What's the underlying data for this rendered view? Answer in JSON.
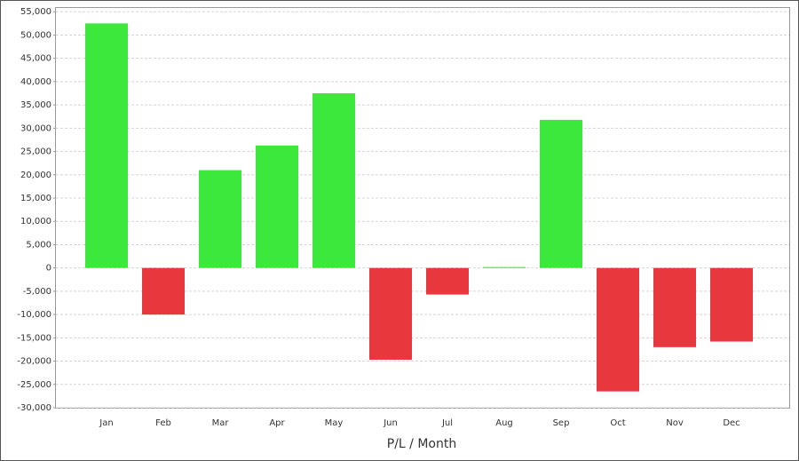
{
  "chart_data": {
    "type": "bar",
    "x_label": "P/L / Month",
    "categories": [
      "Jan",
      "Feb",
      "Mar",
      "Apr",
      "May",
      "Jun",
      "Jul",
      "Aug",
      "Sep",
      "Oct",
      "Nov",
      "Dec"
    ],
    "values": [
      52500,
      -10000,
      21000,
      26300,
      37500,
      -19700,
      -5700,
      200,
      31800,
      -26500,
      -17000,
      -15800
    ],
    "positive_color": "#3de83d",
    "negative_color": "#e8383d",
    "ylim": [
      -30000,
      56000
    ],
    "yticks": [
      {
        "value": -30000,
        "label": "-30,000"
      },
      {
        "value": -25000,
        "label": "-25,000"
      },
      {
        "value": -20000,
        "label": "-20,000"
      },
      {
        "value": -15000,
        "label": "-15,000"
      },
      {
        "value": -10000,
        "label": "-10,000"
      },
      {
        "value": -5000,
        "label": "-5,000"
      },
      0,
      {
        "value": 5000,
        "label": "5,000"
      },
      {
        "value": 10000,
        "label": "10,000"
      },
      {
        "value": 15000,
        "label": "15,000"
      },
      {
        "value": 20000,
        "label": "20,000"
      },
      {
        "value": 25000,
        "label": "25,000"
      },
      {
        "value": 30000,
        "label": "30,000"
      },
      {
        "value": 35000,
        "label": "35,000"
      },
      {
        "value": 40000,
        "label": "40,000"
      },
      {
        "value": 45000,
        "label": "45,000"
      },
      {
        "value": 50000,
        "label": "50,000"
      },
      {
        "value": 55000,
        "label": "55,000"
      }
    ],
    "grid": true
  }
}
